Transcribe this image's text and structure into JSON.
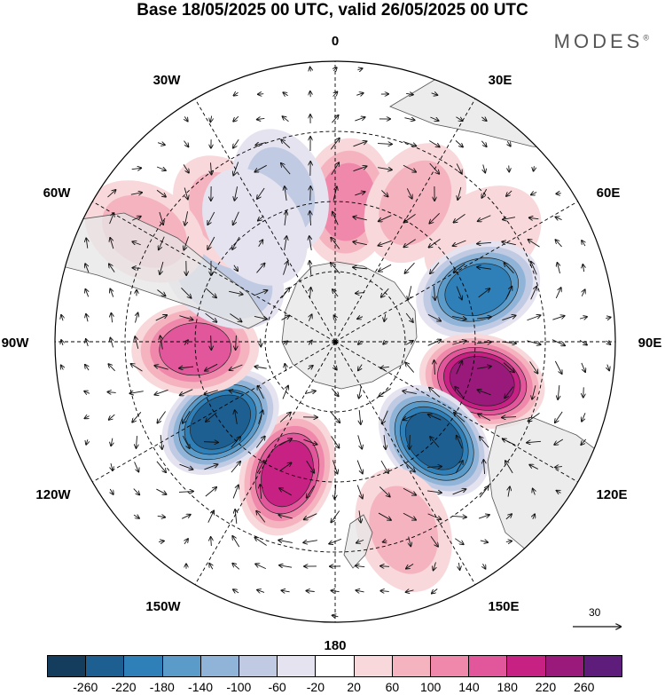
{
  "title": "Base 18/05/2025 00 UTC, valid 26/05/2025 00 UTC",
  "brand": {
    "name": "MODES",
    "mark": "®"
  },
  "longitude_labels": {
    "top": "0",
    "top_right": "30E",
    "right_upper": "60E",
    "right": "90E",
    "right_lower": "120E",
    "bottom_right": "150E",
    "bottom": "180",
    "bottom_left": "150W",
    "left_lower": "120W",
    "left": "90W",
    "left_upper": "60W",
    "top_left": "30W"
  },
  "vector_reference": {
    "value": "30"
  },
  "colorbar": {
    "colors": [
      "#143c5c",
      "#1e5f91",
      "#2f80b8",
      "#5b9bc9",
      "#8fb4d8",
      "#c0cbe3",
      "#e5e3f0",
      "#ffffff",
      "#f8d8da",
      "#f5b3c0",
      "#ef88aa",
      "#e2579b",
      "#c72184",
      "#991a7a",
      "#5e1d7a"
    ],
    "ticks": [
      "-260",
      "-220",
      "-180",
      "-140",
      "-100",
      "-60",
      "-20",
      "20",
      "60",
      "100",
      "140",
      "180",
      "220",
      "260"
    ]
  },
  "anomaly_cells": [
    {
      "lon": 5,
      "lat": -55,
      "value": 120
    },
    {
      "lon": 55,
      "lat": -45,
      "value": 40
    },
    {
      "lon": 30,
      "lat": -50,
      "value": 60
    },
    {
      "lon": 70,
      "lat": -52,
      "value": -200
    },
    {
      "lon": 105,
      "lat": -52,
      "value": 240
    },
    {
      "lon": 135,
      "lat": -55,
      "value": -230
    },
    {
      "lon": 200,
      "lat": -55,
      "value": 210
    },
    {
      "lon": 235,
      "lat": -55,
      "value": -230
    },
    {
      "lon": 267,
      "lat": -55,
      "value": 160
    },
    {
      "lon": 300,
      "lat": -58,
      "value": -100
    },
    {
      "lon": 320,
      "lat": -48,
      "value": 60
    },
    {
      "lon": 340,
      "lat": -50,
      "value": -90
    },
    {
      "lon": 325,
      "lat": -55,
      "value": -60
    },
    {
      "lon": 300,
      "lat": -35,
      "value": 70
    },
    {
      "lon": 160,
      "lat": -40,
      "value": 60
    }
  ]
}
